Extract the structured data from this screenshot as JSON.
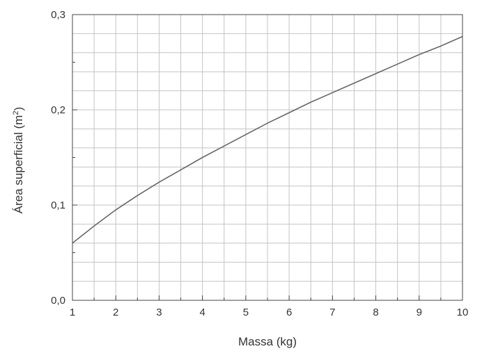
{
  "chart_data": {
    "type": "line",
    "title": "",
    "xlabel": "Massa (kg)",
    "ylabel_main": "Área superficial (m",
    "ylabel_sup": "2",
    "ylabel_close": ")",
    "xlim": [
      1,
      10
    ],
    "ylim": [
      0,
      0.3
    ],
    "x_ticks": [
      {
        "value": 1,
        "label": "1"
      },
      {
        "value": 2,
        "label": "2"
      },
      {
        "value": 3,
        "label": "3"
      },
      {
        "value": 4,
        "label": "4"
      },
      {
        "value": 5,
        "label": "5"
      },
      {
        "value": 6,
        "label": "6"
      },
      {
        "value": 7,
        "label": "7"
      },
      {
        "value": 8,
        "label": "8"
      },
      {
        "value": 9,
        "label": "9"
      },
      {
        "value": 10,
        "label": "10"
      }
    ],
    "y_ticks": [
      {
        "value": 0.0,
        "label": "0,0"
      },
      {
        "value": 0.1,
        "label": "0,1"
      },
      {
        "value": 0.2,
        "label": "0,2"
      },
      {
        "value": 0.3,
        "label": "0,3"
      }
    ],
    "x_minor_step": 0.5,
    "y_minor_step": 0.02,
    "grid": true,
    "line_color": "#666666",
    "series": [
      {
        "x": [
          1,
          1.5,
          2,
          2.5,
          3,
          3.5,
          4,
          4.5,
          5,
          5.5,
          6,
          6.5,
          7,
          7.5,
          8,
          8.5,
          9,
          9.5,
          10
        ],
        "y": [
          0.06,
          0.078,
          0.095,
          0.11,
          0.124,
          0.137,
          0.15,
          0.162,
          0.174,
          0.186,
          0.197,
          0.208,
          0.218,
          0.228,
          0.238,
          0.248,
          0.258,
          0.267,
          0.277
        ]
      }
    ]
  }
}
